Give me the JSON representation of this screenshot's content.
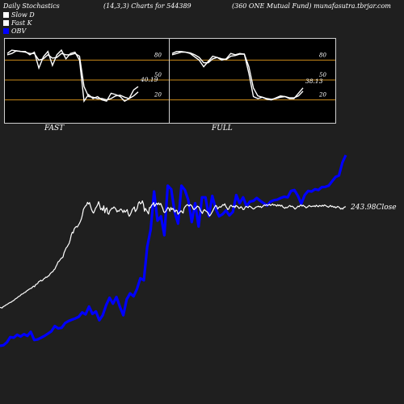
{
  "header": {
    "left": "Daily Stochastics",
    "middle": "(14,3,3) Charts for 544389",
    "right": "(360  ONE Mutual Fund) munafasutra.tbrjar.com"
  },
  "legend": [
    {
      "label": "Slow  D",
      "color": "#ffffff"
    },
    {
      "label": "Fast K",
      "color": "#ffffff"
    },
    {
      "label": "OBV",
      "color": "#0000ff"
    }
  ],
  "panels": [
    {
      "name": "FAST",
      "last_value": "40.19",
      "ticks": [
        "80",
        "50",
        "20"
      ]
    },
    {
      "name": "FULL",
      "last_value": "38.13",
      "ticks": [
        "80",
        "50",
        "20"
      ]
    }
  ],
  "main": {
    "close_label": "243.98Close"
  },
  "chart_data": [
    {
      "type": "line",
      "subplot": "FAST",
      "ylim": [
        0,
        100
      ],
      "reference_lines": [
        80,
        50,
        20
      ],
      "series": [
        {
          "name": "Fast K",
          "color": "#ffffff",
          "values": [
            90,
            95,
            94,
            93,
            93,
            88,
            92,
            68,
            85,
            93,
            72,
            88,
            95,
            82,
            90,
            92,
            80,
            18,
            28,
            22,
            25,
            20,
            18,
            30,
            28,
            25,
            18,
            22,
            35,
            40
          ]
        },
        {
          "name": "Slow  D",
          "color": "#ffffff",
          "values": [
            88,
            90,
            94,
            93,
            92,
            90,
            90,
            80,
            82,
            88,
            83,
            84,
            90,
            88,
            88,
            90,
            86,
            40,
            25,
            24,
            22,
            22,
            20,
            22,
            26,
            27,
            24,
            22,
            26,
            32
          ]
        }
      ]
    },
    {
      "type": "line",
      "subplot": "FULL",
      "ylim": [
        0,
        100
      ],
      "reference_lines": [
        80,
        50,
        20
      ],
      "series": [
        {
          "name": "Fast K",
          "color": "#ffffff",
          "values": [
            90,
            93,
            93,
            92,
            90,
            85,
            80,
            70,
            78,
            86,
            84,
            80,
            82,
            90,
            88,
            90,
            89,
            60,
            25,
            22,
            24,
            21,
            20,
            23,
            26,
            25,
            22,
            22,
            30,
            38
          ]
        },
        {
          "name": "Slow  D",
          "color": "#ffffff",
          "values": [
            88,
            90,
            92,
            92,
            91,
            88,
            84,
            76,
            76,
            82,
            84,
            82,
            81,
            86,
            87,
            89,
            89,
            70,
            38,
            26,
            24,
            22,
            21,
            22,
            24,
            25,
            23,
            23,
            26,
            33
          ]
        }
      ]
    },
    {
      "type": "line",
      "subplot": "main",
      "series": [
        {
          "name": "OBV",
          "color": "#0000ff",
          "values": [
            10,
            12,
            22,
            40,
            38,
            48,
            42,
            50,
            44,
            58,
            30,
            32,
            38,
            44,
            52,
            60,
            78,
            70,
            72,
            88,
            95,
            100,
            104,
            110,
            125,
            118,
            145,
            120,
            128,
            98,
            115,
            150,
            175,
            155,
            178,
            145,
            115,
            170,
            190,
            180,
            205,
            242,
            235,
            350,
            410,
            540,
            440,
            455,
            390,
            560,
            548,
            470,
            430,
            560,
            545,
            510,
            435,
            500,
            420,
            520,
            520,
            455,
            525,
            480,
            455,
            462,
            475,
            458,
            470,
            528,
            500,
            520,
            490,
            505,
            508,
            518,
            508,
            500,
            492,
            505,
            510,
            512,
            518,
            522,
            520,
            542,
            545,
            525,
            498,
            528,
            542,
            540,
            548,
            545,
            555,
            556,
            560,
            575,
            590,
            595,
            640,
            665
          ]
        },
        {
          "name": "Close",
          "color": "#ffffff",
          "values": [
            142,
            141,
            140,
            144,
            146,
            148,
            151,
            152,
            155,
            157,
            159,
            160,
            163,
            165,
            167,
            171,
            173,
            175,
            179,
            180,
            183,
            187,
            188,
            190,
            193,
            194,
            198,
            200,
            203,
            205,
            207,
            208,
            212,
            215,
            213,
            220,
            222,
            224,
            230,
            232,
            235,
            233,
            235,
            240,
            242,
            246,
            245,
            249,
            250,
            256,
            260,
            263,
            265,
            271,
            274,
            282,
            289,
            298,
            300,
            305,
            310,
            312,
            315,
            330,
            338,
            346,
            350,
            356,
            362,
            374,
            390,
            400,
            398,
            412,
            417,
            420,
            418,
            424,
            430,
            437,
            446,
            460,
            478,
            485,
            490,
            493,
            503,
            497,
            502,
            490,
            478,
            470,
            466,
            474,
            483,
            488,
            495,
            505,
            492,
            478,
            482,
            475,
            491,
            467,
            480,
            484,
            465,
            462,
            474,
            478,
            483,
            482,
            487,
            484,
            479,
            470,
            474,
            472,
            478,
            480,
            475,
            468,
            476,
            469,
            473,
            478,
            464,
            455,
            460,
            468,
            478,
            482,
            487,
            471,
            476,
            483,
            500,
            505,
            498,
            500,
            508,
            497,
            472,
            482,
            476,
            470,
            463,
            485,
            485,
            493,
            496,
            502,
            489,
            495,
            500,
            495,
            501,
            495,
            499,
            490,
            482,
            470,
            468,
            472,
            478,
            485,
            483,
            472,
            485,
            478,
            482,
            476,
            470,
            476,
            475,
            462,
            466,
            470,
            474,
            470,
            466,
            482,
            488,
            492,
            495,
            493,
            490,
            495,
            493,
            488,
            480,
            478,
            482,
            485,
            490,
            488,
            485,
            475,
            470,
            465,
            474,
            478,
            474,
            472,
            469,
            463,
            456,
            460,
            466,
            472,
            480,
            486,
            492,
            490,
            480,
            485,
            488,
            486,
            490,
            495,
            493,
            498,
            489,
            484,
            478,
            481,
            489,
            493,
            490,
            487,
            490,
            485,
            492,
            490,
            487,
            482,
            484,
            488,
            484,
            478,
            479,
            486,
            489,
            487,
            485,
            490,
            489,
            486,
            483,
            480,
            481,
            485,
            487,
            488,
            490,
            487,
            489,
            485,
            488,
            491,
            494,
            492,
            495,
            492,
            494,
            496,
            492,
            494,
            497,
            493,
            495,
            493,
            490,
            495,
            491,
            494,
            490,
            493,
            487,
            485,
            482,
            486,
            484,
            486,
            490,
            492,
            488,
            490,
            488,
            484,
            480,
            482,
            486,
            490,
            488,
            492,
            494,
            490,
            493,
            490,
            488,
            484,
            486,
            489,
            492,
            490,
            488,
            490,
            489,
            491,
            488,
            493,
            490,
            488,
            492,
            491,
            489,
            493,
            490,
            494,
            492,
            490,
            488,
            486,
            490,
            492,
            488,
            490,
            486,
            488,
            484,
            486,
            489,
            487,
            484,
            480,
            482,
            480,
            485,
            487,
            488
          ]
        }
      ]
    }
  ]
}
